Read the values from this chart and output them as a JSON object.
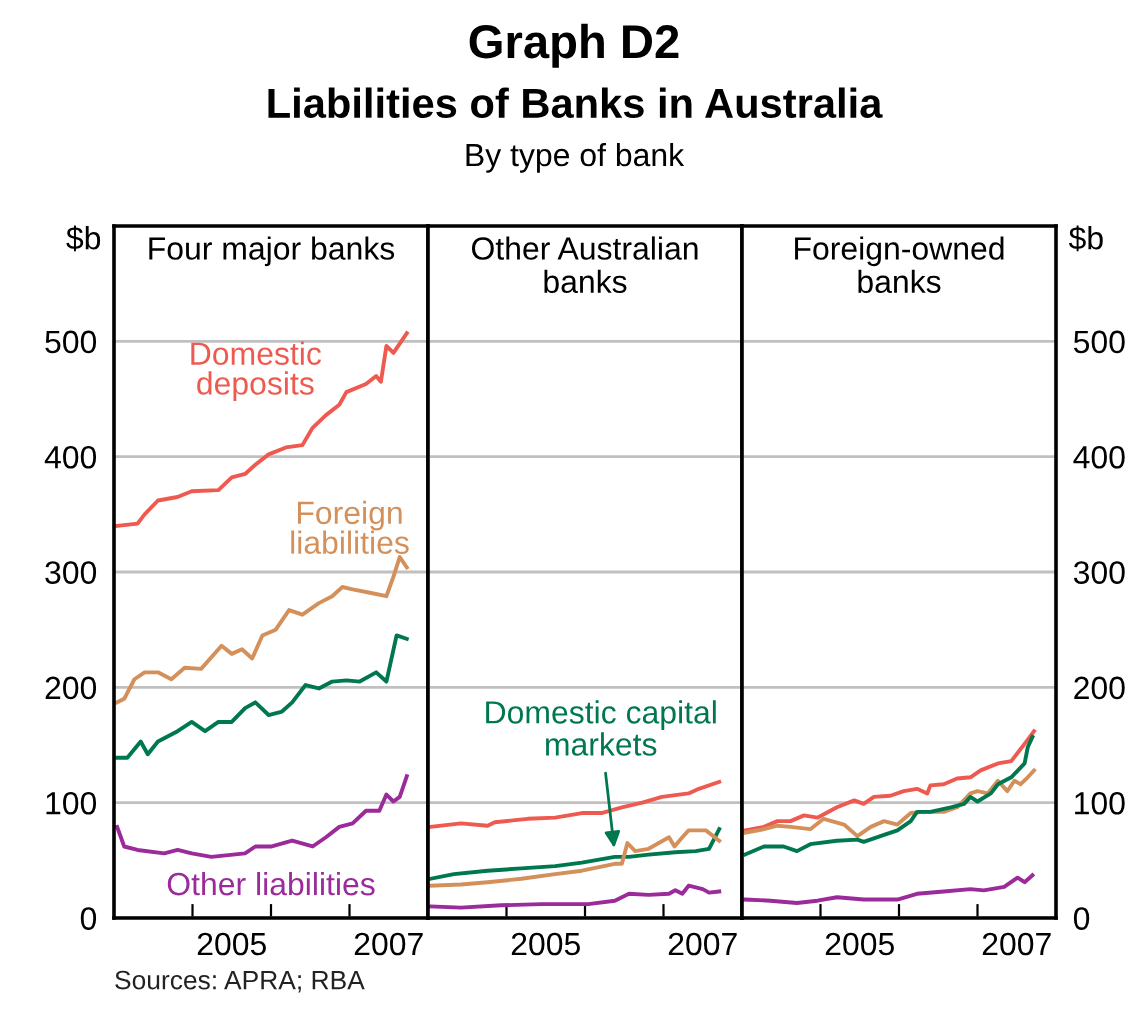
{
  "chart_data": [
    {
      "type": "line",
      "title": "Four major banks",
      "ylabel": "$b",
      "xlim": [
        2003.5,
        2007.5
      ],
      "ylim": [
        0,
        600
      ],
      "yticks": [
        0,
        100,
        200,
        300,
        400,
        500
      ],
      "grid": "y",
      "legend": false,
      "xticks": [
        {
          "value": 2004.5,
          "label": null
        },
        2005,
        {
          "value": 2005.5,
          "label": null
        },
        {
          "value": 2006.5,
          "label": null
        },
        2007
      ],
      "annotations": [
        "Graph D2",
        "Liabilities of Banks in Australia",
        "By type of bank",
        "Sources: APRA; RBA"
      ],
      "series": [
        {
          "name": "Domestic deposits",
          "color": "#ee5a4f",
          "x": [
            2003.54,
            2003.8,
            2003.89,
            2004.06,
            2004.31,
            2004.49,
            2004.83,
            2005.0,
            2005.17,
            2005.3,
            2005.47,
            2005.69,
            2005.9,
            2006.03,
            2006.2,
            2006.37,
            2006.46,
            2006.71,
            2006.84,
            2006.9,
            2006.97,
            2007.06,
            2007.23
          ],
          "values": [
            340,
            342,
            350,
            362,
            365,
            370,
            371,
            382,
            385,
            393,
            402,
            408,
            410,
            425,
            436,
            445,
            456,
            463,
            470,
            465,
            496,
            490,
            507
          ]
        },
        {
          "name": "Foreign liabilities",
          "color": "#d4905b",
          "x": [
            2003.54,
            2003.63,
            2003.76,
            2003.89,
            2004.06,
            2004.23,
            2004.4,
            2004.61,
            2004.87,
            2005.0,
            2005.13,
            2005.26,
            2005.39,
            2005.56,
            2005.73,
            2005.9,
            2006.11,
            2006.28,
            2006.41,
            2006.54,
            2006.76,
            2006.97,
            2007.06,
            2007.14,
            2007.23
          ],
          "values": [
            187,
            190,
            207,
            213,
            213,
            207,
            217,
            216,
            236,
            229,
            233,
            225,
            245,
            250,
            267,
            263,
            273,
            279,
            287,
            285,
            282,
            279,
            296,
            313,
            304
          ]
        },
        {
          "color": "#00784f",
          "x": [
            2003.54,
            2003.67,
            2003.84,
            2003.93,
            2004.06,
            2004.31,
            2004.49,
            2004.66,
            2004.83,
            2005.0,
            2005.17,
            2005.3,
            2005.47,
            2005.64,
            2005.77,
            2005.94,
            2006.11,
            2006.28,
            2006.46,
            2006.63,
            2006.84,
            2006.97,
            2007.1,
            2007.23
          ],
          "values": [
            139,
            139,
            153,
            142,
            153,
            162,
            170,
            162,
            170,
            170,
            182,
            187,
            176,
            179,
            187,
            202,
            199,
            205,
            206,
            205,
            213,
            205,
            245,
            242
          ]
        },
        {
          "name": "Other liabilities",
          "color": "#9b2a9b",
          "x": [
            2003.54,
            2003.63,
            2003.8,
            2004.14,
            2004.31,
            2004.49,
            2004.74,
            2005.17,
            2005.3,
            2005.51,
            2005.77,
            2006.03,
            2006.2,
            2006.37,
            2006.54,
            2006.71,
            2006.88,
            2006.97,
            2007.06,
            2007.14,
            2007.23
          ],
          "values": [
            79,
            62,
            59,
            56,
            59,
            56,
            53,
            56,
            62,
            62,
            67,
            62,
            70,
            79,
            82,
            93,
            93,
            107,
            101,
            105,
            123
          ]
        }
      ]
    },
    {
      "type": "line",
      "title": "Other Australian\nbanks",
      "xlim": [
        2003.5,
        2007.5
      ],
      "ylim": [
        0,
        600
      ],
      "yticks": [
        0,
        100,
        200,
        300,
        400,
        500
      ],
      "grid": "y",
      "legend": false,
      "tick_labels": "x",
      "xticks": [
        {
          "value": 2004.5,
          "label": null
        },
        2005,
        {
          "value": 2005.5,
          "label": null
        },
        {
          "value": 2006.5,
          "label": null
        },
        2007
      ],
      "series": [
        {
          "color": "#ee5a4f",
          "x": [
            2003.53,
            2003.92,
            2004.26,
            2004.35,
            2004.77,
            2005.12,
            2005.46,
            2005.71,
            2005.97,
            2006.23,
            2006.48,
            2006.82,
            2006.95,
            2007.21
          ],
          "values": [
            79,
            82,
            80,
            83,
            86,
            87,
            91,
            91,
            96,
            100,
            105,
            108,
            112,
            118
          ]
        },
        {
          "name": "Domestic capital markets",
          "color": "#00784f",
          "x": [
            2003.53,
            2003.83,
            2004.26,
            2004.69,
            2005.12,
            2005.46,
            2005.88,
            2006.06,
            2006.31,
            2006.65,
            2006.91,
            2007.08,
            2007.21
          ],
          "values": [
            34,
            38,
            41,
            43,
            45,
            48,
            53,
            53,
            55,
            57,
            58,
            60,
            77
          ]
        },
        {
          "color": "#d4905b",
          "x": [
            2003.53,
            2003.92,
            2004.26,
            2004.69,
            2005.12,
            2005.46,
            2005.88,
            2005.97,
            2006.04,
            2006.14,
            2006.31,
            2006.57,
            2006.64,
            2006.74,
            2006.82,
            2007.04,
            2007.21
          ],
          "values": [
            28,
            29,
            31,
            34,
            38,
            41,
            47,
            47,
            65,
            58,
            60,
            70,
            62,
            70,
            76,
            76,
            67
          ]
        },
        {
          "color": "#9b2a9b",
          "x": [
            2003.53,
            2003.92,
            2004.43,
            2004.94,
            2005.54,
            2005.88,
            2006.06,
            2006.31,
            2006.57,
            2006.65,
            2006.74,
            2006.82,
            2007.0,
            2007.08,
            2007.21
          ],
          "values": [
            10,
            9,
            11,
            12,
            12,
            15,
            21,
            20,
            21,
            24,
            21,
            28,
            25,
            22,
            23
          ]
        }
      ]
    },
    {
      "type": "line",
      "title": "Foreign-owned\nbanks",
      "y2label": "$b",
      "xlim": [
        2003.5,
        2007.5
      ],
      "y2lim": [
        0,
        600
      ],
      "y2ticks": [
        0,
        100,
        200,
        300,
        400,
        500
      ],
      "grid": "y",
      "legend": false,
      "xticks": [
        {
          "value": 2004.5,
          "label": null
        },
        2005,
        {
          "value": 2005.5,
          "label": null
        },
        {
          "value": 2006.5,
          "label": null
        },
        2007
      ],
      "series": [
        {
          "color": "#ee5a4f",
          "axis": "y2",
          "x": [
            2003.54,
            2003.78,
            2003.95,
            2004.12,
            2004.29,
            2004.46,
            2004.71,
            2004.93,
            2005.05,
            2005.18,
            2005.39,
            2005.56,
            2005.73,
            2005.86,
            2005.9,
            2006.07,
            2006.24,
            2006.41,
            2006.54,
            2006.76,
            2006.93,
            2007.1,
            2007.22
          ],
          "values": [
            76,
            79,
            84,
            84,
            89,
            87,
            96,
            102,
            99,
            105,
            106,
            110,
            112,
            108,
            115,
            116,
            121,
            122,
            128,
            134,
            136,
            151,
            162
          ]
        },
        {
          "color": "#d4905b",
          "axis": "y2",
          "x": [
            2003.54,
            2003.78,
            2003.95,
            2004.12,
            2004.37,
            2004.54,
            2004.8,
            2004.97,
            2005.14,
            2005.31,
            2005.48,
            2005.65,
            2005.82,
            2006.07,
            2006.24,
            2006.41,
            2006.5,
            2006.63,
            2006.76,
            2006.88,
            2006.97,
            2007.05,
            2007.14,
            2007.22
          ],
          "values": [
            74,
            77,
            80,
            79,
            77,
            86,
            81,
            71,
            79,
            84,
            81,
            91,
            92,
            92,
            96,
            108,
            110,
            108,
            119,
            110,
            119,
            116,
            122,
            128
          ]
        },
        {
          "color": "#00784f",
          "axis": "y2",
          "x": [
            2003.54,
            2003.78,
            2004.03,
            2004.2,
            2004.37,
            2004.71,
            2004.97,
            2005.05,
            2005.31,
            2005.48,
            2005.65,
            2005.73,
            2005.9,
            2006.16,
            2006.33,
            2006.41,
            2006.5,
            2006.67,
            2006.76,
            2006.93,
            2007.1,
            2007.14,
            2007.2
          ],
          "values": [
            55,
            62,
            62,
            58,
            64,
            67,
            68,
            66,
            72,
            76,
            84,
            92,
            92,
            96,
            99,
            105,
            101,
            108,
            116,
            122,
            134,
            148,
            157
          ]
        },
        {
          "color": "#9b2a9b",
          "axis": "y2",
          "x": [
            2003.54,
            2003.86,
            2004.2,
            2004.46,
            2004.71,
            2005.05,
            2005.48,
            2005.73,
            2006.07,
            2006.41,
            2006.58,
            2006.84,
            2007.01,
            2007.1,
            2007.2
          ],
          "values": [
            16,
            15,
            13,
            15,
            18,
            16,
            16,
            21,
            23,
            25,
            24,
            27,
            35,
            31,
            37
          ]
        }
      ]
    }
  ]
}
